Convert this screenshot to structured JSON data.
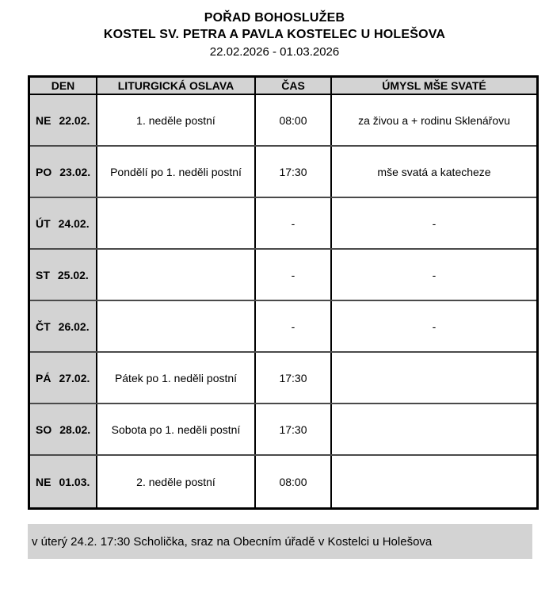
{
  "header": {
    "title": "POŘAD BOHOSLUŽEB",
    "subtitle": "KOSTEL SV. PETRA A PAVLA KOSTELEC U HOLEŠOVA",
    "date_range": "22.02.2026 - 01.03.2026"
  },
  "table": {
    "columns": [
      "DEN",
      "LITURGICKÁ OSLAVA",
      "ČAS",
      "ÚMYSL MŠE SVATÉ"
    ],
    "rows": [
      {
        "day": "NE",
        "date": "22.02.",
        "feast": "1. neděle postní",
        "time": "08:00",
        "intention": "za živou a + rodinu Sklenářovu"
      },
      {
        "day": "PO",
        "date": "23.02.",
        "feast": "Pondělí po 1. neděli postní",
        "time": "17:30",
        "intention": "mše svatá a katecheze"
      },
      {
        "day": "ÚT",
        "date": "24.02.",
        "feast": "",
        "time": "-",
        "intention": "-"
      },
      {
        "day": "ST",
        "date": "25.02.",
        "feast": "",
        "time": "-",
        "intention": "-"
      },
      {
        "day": "ČT",
        "date": "26.02.",
        "feast": "",
        "time": "-",
        "intention": "-"
      },
      {
        "day": "PÁ",
        "date": "27.02.",
        "feast": "Pátek po 1. neděli postní",
        "time": "17:30",
        "intention": ""
      },
      {
        "day": "SO",
        "date": "28.02.",
        "feast": "Sobota po 1. neděli postní",
        "time": "17:30",
        "intention": ""
      },
      {
        "day": "NE",
        "date": "01.03.",
        "feast": "2. neděle postní",
        "time": "08:00",
        "intention": ""
      }
    ]
  },
  "footer": {
    "note": "v úterý 24.2. 17:30 Scholička, sraz na Obecním úřadě v Kostelci u Holešova"
  },
  "colors": {
    "fill_gray": "#d3d3d3",
    "border_black": "#000000",
    "row_line": "#4a4a4a"
  }
}
